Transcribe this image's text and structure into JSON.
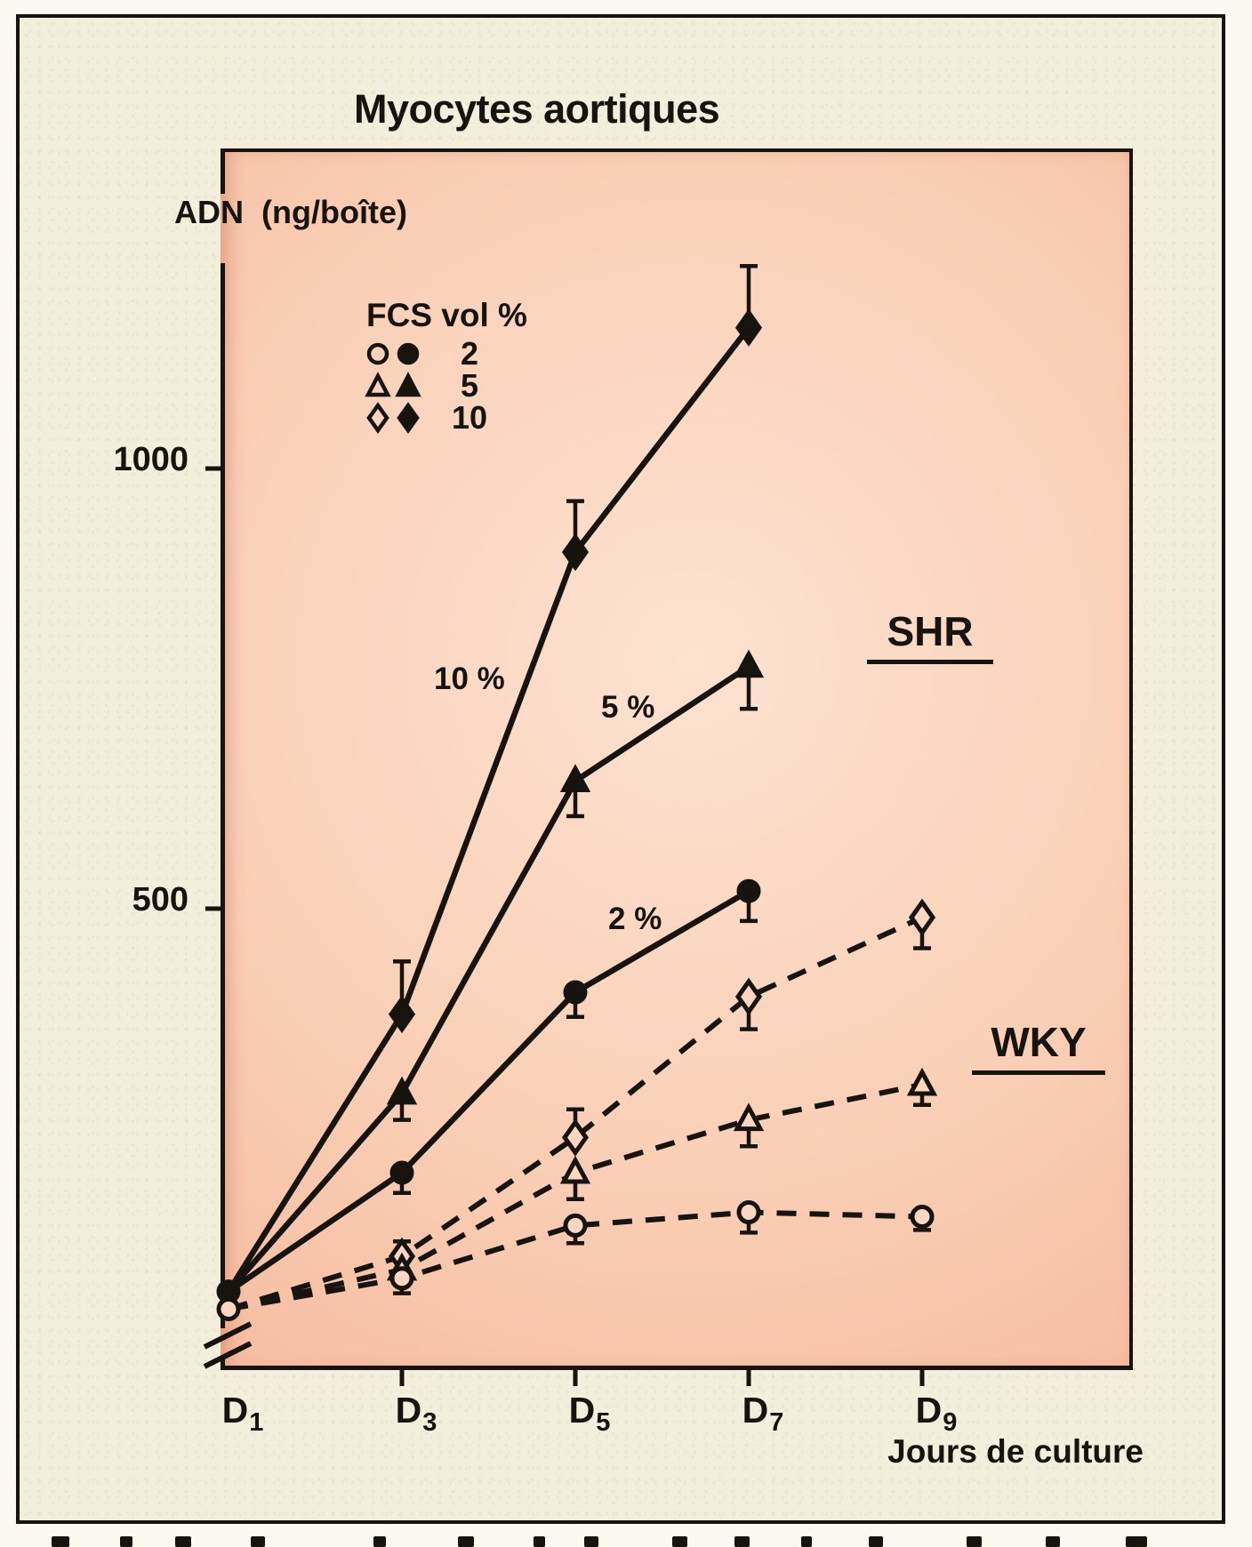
{
  "page": {
    "title": "Myocytes aortiques"
  },
  "axes": {
    "y_label": "ADN  (ng/boîte)",
    "y_ticks": [
      {
        "label": "1000",
        "value": 1000
      },
      {
        "label": "500",
        "value": 500
      }
    ],
    "x_label": "Jours de culture",
    "x_ticks": [
      {
        "main": "D",
        "sub": "1",
        "day": 1
      },
      {
        "main": "D",
        "sub": "3",
        "day": 3
      },
      {
        "main": "D",
        "sub": "5",
        "day": 5
      },
      {
        "main": "D",
        "sub": "7",
        "day": 7
      },
      {
        "main": "D",
        "sub": "9",
        "day": 9
      }
    ]
  },
  "legend": {
    "title": "FCS vol %",
    "rows": [
      {
        "open_marker": "circle",
        "filled_marker": "circle",
        "label": "2"
      },
      {
        "open_marker": "triangle",
        "filled_marker": "triangle",
        "label": "5"
      },
      {
        "open_marker": "diamond",
        "filled_marker": "diamond",
        "label": "10"
      }
    ]
  },
  "annotations": {
    "shr": "SHR",
    "wky": "WKY",
    "label_10": "10 %",
    "label_5": "5 %",
    "label_2": "2 %"
  },
  "colors": {
    "ink": "#17130f",
    "page_bg": "#f4eedd",
    "plot_bg_center": "#fde2d0",
    "plot_bg_edge": "#f4b295",
    "open_marker_fill": "#fbd7c2"
  },
  "chart_data": {
    "type": "line",
    "title": "Myocytes aortiques",
    "xlabel": "Jours de culture",
    "ylabel": "ADN (ng/boîte)",
    "x": [
      1,
      3,
      5,
      7,
      9
    ],
    "x_tick_labels": [
      "D1",
      "D3",
      "D5",
      "D7",
      "D9"
    ],
    "ylim": [
      0,
      1300
    ],
    "yticks": [
      500,
      1000
    ],
    "y_axis_break_near_origin": true,
    "grid": false,
    "legend_title": "FCS vol %",
    "legend_position": "upper-left-inside",
    "series": [
      {
        "name": "SHR FCS 10%",
        "group": "SHR",
        "fcs_vol_pct": 10,
        "line": "solid",
        "marker": "diamond",
        "marker_fill": "filled",
        "first_marker": "none",
        "x": [
          1,
          3,
          5,
          7
        ],
        "values": [
          65,
          380,
          905,
          1160
        ],
        "err": [
          0,
          60,
          58,
          70
        ],
        "err_dir": [
          "none",
          "up",
          "up",
          "up"
        ]
      },
      {
        "name": "SHR FCS 5%",
        "group": "SHR",
        "fcs_vol_pct": 5,
        "line": "solid",
        "marker": "triangle",
        "marker_fill": "filled",
        "first_marker": "none",
        "x": [
          1,
          3,
          5,
          7
        ],
        "values": [
          65,
          290,
          645,
          775
        ],
        "err": [
          0,
          30,
          40,
          48
        ],
        "err_dir": [
          "none",
          "down",
          "down",
          "down"
        ]
      },
      {
        "name": "SHR FCS 2%",
        "group": "SHR",
        "fcs_vol_pct": 2,
        "line": "solid",
        "marker": "circle",
        "marker_fill": "filled",
        "first_marker": "circle",
        "x": [
          1,
          3,
          5,
          7
        ],
        "values": [
          65,
          200,
          405,
          520
        ],
        "err": [
          0,
          23,
          28,
          34
        ],
        "err_dir": [
          "none",
          "down",
          "down",
          "down"
        ]
      },
      {
        "name": "WKY FCS 10%",
        "group": "WKY",
        "fcs_vol_pct": 10,
        "line": "dashed",
        "marker": "diamond",
        "marker_fill": "open",
        "first_marker": "none",
        "x": [
          1,
          3,
          5,
          7,
          9
        ],
        "values": [
          45,
          105,
          240,
          400,
          490
        ],
        "err": [
          0,
          17,
          32,
          37,
          35
        ],
        "err_dir": [
          "none",
          "up",
          "up",
          "down",
          "down"
        ]
      },
      {
        "name": "WKY FCS 5%",
        "group": "WKY",
        "fcs_vol_pct": 5,
        "line": "dashed",
        "marker": "triangle",
        "marker_fill": "open",
        "first_marker": "none",
        "x": [
          1,
          3,
          5,
          7,
          9
        ],
        "values": [
          45,
          90,
          200,
          260,
          300
        ],
        "err": [
          0,
          0,
          30,
          30,
          23
        ],
        "err_dir": [
          "none",
          "none",
          "down",
          "down",
          "down"
        ]
      },
      {
        "name": "WKY FCS 2%",
        "group": "WKY",
        "fcs_vol_pct": 2,
        "line": "dashed",
        "marker": "circle",
        "marker_fill": "open",
        "first_marker": "circle",
        "x": [
          1,
          3,
          5,
          7,
          9
        ],
        "values": [
          45,
          80,
          140,
          155,
          150
        ],
        "err": [
          0,
          17,
          20,
          23,
          15
        ],
        "err_dir": [
          "none",
          "down",
          "down",
          "down",
          "down"
        ]
      }
    ]
  }
}
